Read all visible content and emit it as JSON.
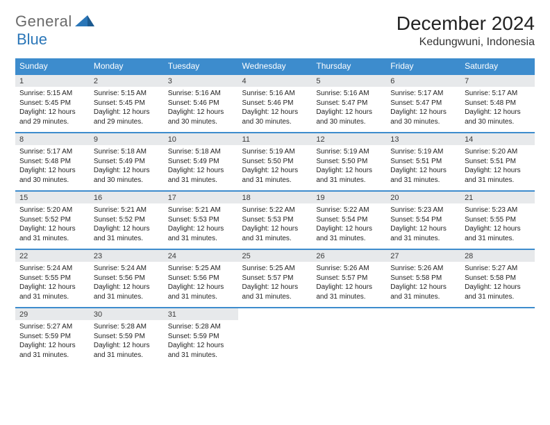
{
  "brand": {
    "word1": "General",
    "word2": "Blue"
  },
  "title": "December 2024",
  "location": "Kedungwuni, Indonesia",
  "colors": {
    "header_bg": "#3d8ccd",
    "header_text": "#ffffff",
    "daynum_bg": "#e7e9eb",
    "rule": "#3d8ccd",
    "logo_gray": "#6a6a6a",
    "logo_blue": "#2a76b8"
  },
  "day_headers": [
    "Sunday",
    "Monday",
    "Tuesday",
    "Wednesday",
    "Thursday",
    "Friday",
    "Saturday"
  ],
  "weeks": [
    [
      {
        "n": "1",
        "sr": "Sunrise: 5:15 AM",
        "ss": "Sunset: 5:45 PM",
        "d1": "Daylight: 12 hours",
        "d2": "and 29 minutes."
      },
      {
        "n": "2",
        "sr": "Sunrise: 5:15 AM",
        "ss": "Sunset: 5:45 PM",
        "d1": "Daylight: 12 hours",
        "d2": "and 29 minutes."
      },
      {
        "n": "3",
        "sr": "Sunrise: 5:16 AM",
        "ss": "Sunset: 5:46 PM",
        "d1": "Daylight: 12 hours",
        "d2": "and 30 minutes."
      },
      {
        "n": "4",
        "sr": "Sunrise: 5:16 AM",
        "ss": "Sunset: 5:46 PM",
        "d1": "Daylight: 12 hours",
        "d2": "and 30 minutes."
      },
      {
        "n": "5",
        "sr": "Sunrise: 5:16 AM",
        "ss": "Sunset: 5:47 PM",
        "d1": "Daylight: 12 hours",
        "d2": "and 30 minutes."
      },
      {
        "n": "6",
        "sr": "Sunrise: 5:17 AM",
        "ss": "Sunset: 5:47 PM",
        "d1": "Daylight: 12 hours",
        "d2": "and 30 minutes."
      },
      {
        "n": "7",
        "sr": "Sunrise: 5:17 AM",
        "ss": "Sunset: 5:48 PM",
        "d1": "Daylight: 12 hours",
        "d2": "and 30 minutes."
      }
    ],
    [
      {
        "n": "8",
        "sr": "Sunrise: 5:17 AM",
        "ss": "Sunset: 5:48 PM",
        "d1": "Daylight: 12 hours",
        "d2": "and 30 minutes."
      },
      {
        "n": "9",
        "sr": "Sunrise: 5:18 AM",
        "ss": "Sunset: 5:49 PM",
        "d1": "Daylight: 12 hours",
        "d2": "and 30 minutes."
      },
      {
        "n": "10",
        "sr": "Sunrise: 5:18 AM",
        "ss": "Sunset: 5:49 PM",
        "d1": "Daylight: 12 hours",
        "d2": "and 31 minutes."
      },
      {
        "n": "11",
        "sr": "Sunrise: 5:19 AM",
        "ss": "Sunset: 5:50 PM",
        "d1": "Daylight: 12 hours",
        "d2": "and 31 minutes."
      },
      {
        "n": "12",
        "sr": "Sunrise: 5:19 AM",
        "ss": "Sunset: 5:50 PM",
        "d1": "Daylight: 12 hours",
        "d2": "and 31 minutes."
      },
      {
        "n": "13",
        "sr": "Sunrise: 5:19 AM",
        "ss": "Sunset: 5:51 PM",
        "d1": "Daylight: 12 hours",
        "d2": "and 31 minutes."
      },
      {
        "n": "14",
        "sr": "Sunrise: 5:20 AM",
        "ss": "Sunset: 5:51 PM",
        "d1": "Daylight: 12 hours",
        "d2": "and 31 minutes."
      }
    ],
    [
      {
        "n": "15",
        "sr": "Sunrise: 5:20 AM",
        "ss": "Sunset: 5:52 PM",
        "d1": "Daylight: 12 hours",
        "d2": "and 31 minutes."
      },
      {
        "n": "16",
        "sr": "Sunrise: 5:21 AM",
        "ss": "Sunset: 5:52 PM",
        "d1": "Daylight: 12 hours",
        "d2": "and 31 minutes."
      },
      {
        "n": "17",
        "sr": "Sunrise: 5:21 AM",
        "ss": "Sunset: 5:53 PM",
        "d1": "Daylight: 12 hours",
        "d2": "and 31 minutes."
      },
      {
        "n": "18",
        "sr": "Sunrise: 5:22 AM",
        "ss": "Sunset: 5:53 PM",
        "d1": "Daylight: 12 hours",
        "d2": "and 31 minutes."
      },
      {
        "n": "19",
        "sr": "Sunrise: 5:22 AM",
        "ss": "Sunset: 5:54 PM",
        "d1": "Daylight: 12 hours",
        "d2": "and 31 minutes."
      },
      {
        "n": "20",
        "sr": "Sunrise: 5:23 AM",
        "ss": "Sunset: 5:54 PM",
        "d1": "Daylight: 12 hours",
        "d2": "and 31 minutes."
      },
      {
        "n": "21",
        "sr": "Sunrise: 5:23 AM",
        "ss": "Sunset: 5:55 PM",
        "d1": "Daylight: 12 hours",
        "d2": "and 31 minutes."
      }
    ],
    [
      {
        "n": "22",
        "sr": "Sunrise: 5:24 AM",
        "ss": "Sunset: 5:55 PM",
        "d1": "Daylight: 12 hours",
        "d2": "and 31 minutes."
      },
      {
        "n": "23",
        "sr": "Sunrise: 5:24 AM",
        "ss": "Sunset: 5:56 PM",
        "d1": "Daylight: 12 hours",
        "d2": "and 31 minutes."
      },
      {
        "n": "24",
        "sr": "Sunrise: 5:25 AM",
        "ss": "Sunset: 5:56 PM",
        "d1": "Daylight: 12 hours",
        "d2": "and 31 minutes."
      },
      {
        "n": "25",
        "sr": "Sunrise: 5:25 AM",
        "ss": "Sunset: 5:57 PM",
        "d1": "Daylight: 12 hours",
        "d2": "and 31 minutes."
      },
      {
        "n": "26",
        "sr": "Sunrise: 5:26 AM",
        "ss": "Sunset: 5:57 PM",
        "d1": "Daylight: 12 hours",
        "d2": "and 31 minutes."
      },
      {
        "n": "27",
        "sr": "Sunrise: 5:26 AM",
        "ss": "Sunset: 5:58 PM",
        "d1": "Daylight: 12 hours",
        "d2": "and 31 minutes."
      },
      {
        "n": "28",
        "sr": "Sunrise: 5:27 AM",
        "ss": "Sunset: 5:58 PM",
        "d1": "Daylight: 12 hours",
        "d2": "and 31 minutes."
      }
    ],
    [
      {
        "n": "29",
        "sr": "Sunrise: 5:27 AM",
        "ss": "Sunset: 5:59 PM",
        "d1": "Daylight: 12 hours",
        "d2": "and 31 minutes."
      },
      {
        "n": "30",
        "sr": "Sunrise: 5:28 AM",
        "ss": "Sunset: 5:59 PM",
        "d1": "Daylight: 12 hours",
        "d2": "and 31 minutes."
      },
      {
        "n": "31",
        "sr": "Sunrise: 5:28 AM",
        "ss": "Sunset: 5:59 PM",
        "d1": "Daylight: 12 hours",
        "d2": "and 31 minutes."
      },
      null,
      null,
      null,
      null
    ]
  ]
}
